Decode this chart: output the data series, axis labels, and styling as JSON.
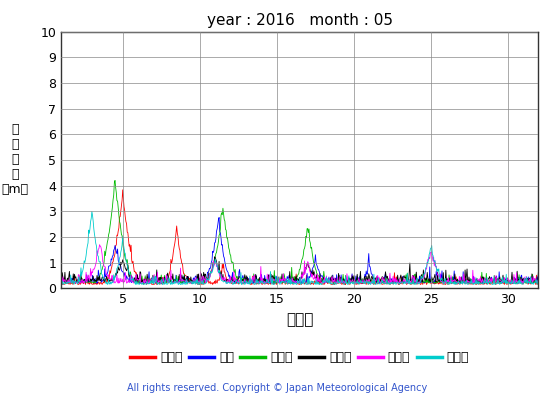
{
  "title": "year : 2016   month : 05",
  "xlabel": "（日）",
  "ylabel_chars": [
    "有",
    "義",
    "波",
    "高",
    "（m）"
  ],
  "xlim": [
    1,
    32
  ],
  "ylim": [
    0,
    10
  ],
  "yticks": [
    0,
    1,
    2,
    3,
    4,
    5,
    6,
    7,
    8,
    9,
    10
  ],
  "xticks": [
    5,
    10,
    15,
    20,
    25,
    30
  ],
  "copyright": "All rights reserved. Copyright © Japan Meteorological Agency",
  "series": [
    {
      "label": "上ノ国",
      "color": "#ff0000"
    },
    {
      "label": "唐桑",
      "color": "#0000ff"
    },
    {
      "label": "石廂崎",
      "color": "#00bb00"
    },
    {
      "label": "経ヶ尌",
      "color": "#000000"
    },
    {
      "label": "生月島",
      "color": "#ff00ff"
    },
    {
      "label": "屋久島",
      "color": "#00cccc"
    }
  ]
}
